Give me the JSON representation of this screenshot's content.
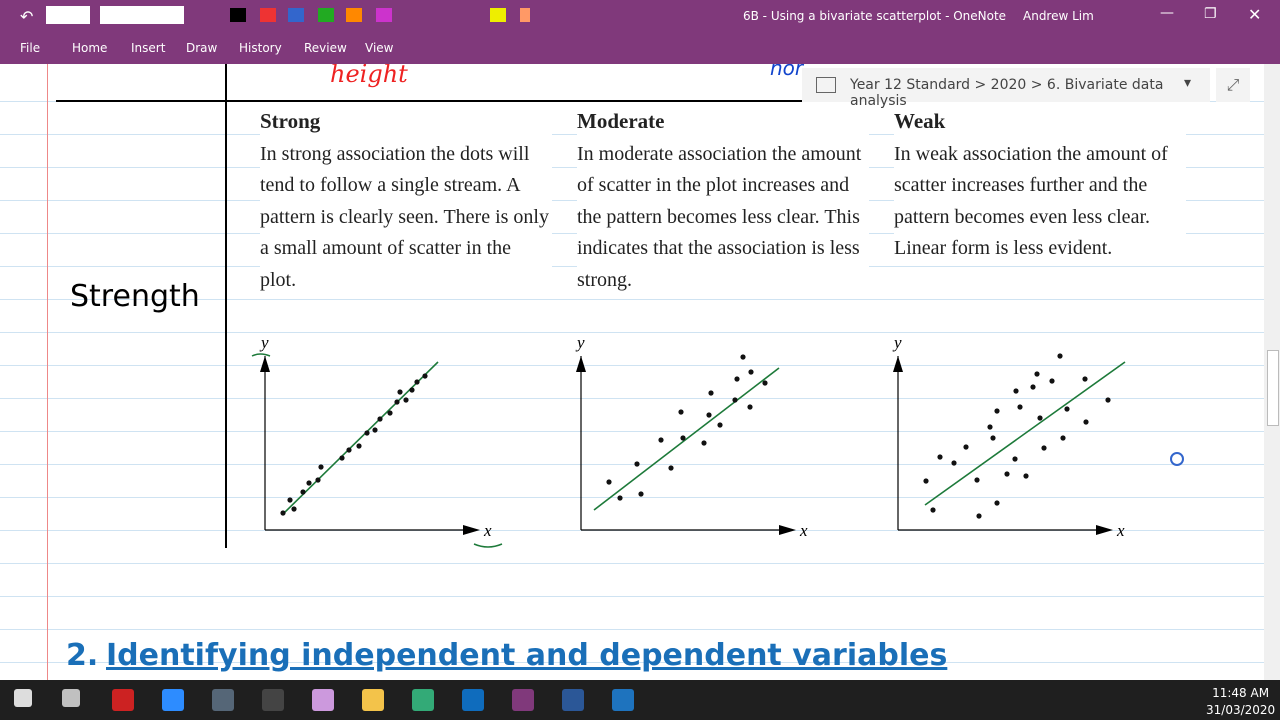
{
  "titlebar": {
    "title": "6B - Using a bivariate scatterplot  -  OneNote",
    "user": "Andrew Lim"
  },
  "tabs": [
    "File",
    "Home",
    "Insert",
    "Draw",
    "History",
    "Review",
    "View"
  ],
  "breadcrumb": "Year 12 Standard > 2020 > 6. Bivariate data analysis",
  "handwriting": "height",
  "row_label": "Strength",
  "columns": [
    {
      "heading": "Strong",
      "text": "In strong association the dots will tend to follow a single stream. A pattern is clearly seen. There is only a small amount of scatter in the plot.",
      "y_label": "y",
      "x_label": "x"
    },
    {
      "heading": "Moderate",
      "text": "In moderate association the amount of scatter in the plot increases and the pattern becomes less clear. This indicates that the association is less strong.",
      "y_label": "y",
      "x_label": "x"
    },
    {
      "heading": "Weak",
      "text": "In weak association the amount of scatter increases further and the pattern becomes even less clear. Linear form is less evident.",
      "y_label": "y",
      "x_label": "x"
    }
  ],
  "section": {
    "number": "2.",
    "title": "Identifying independent and dependent variables"
  },
  "taskbar": {
    "time": "11:48 AM",
    "date": "31/03/2020"
  }
}
